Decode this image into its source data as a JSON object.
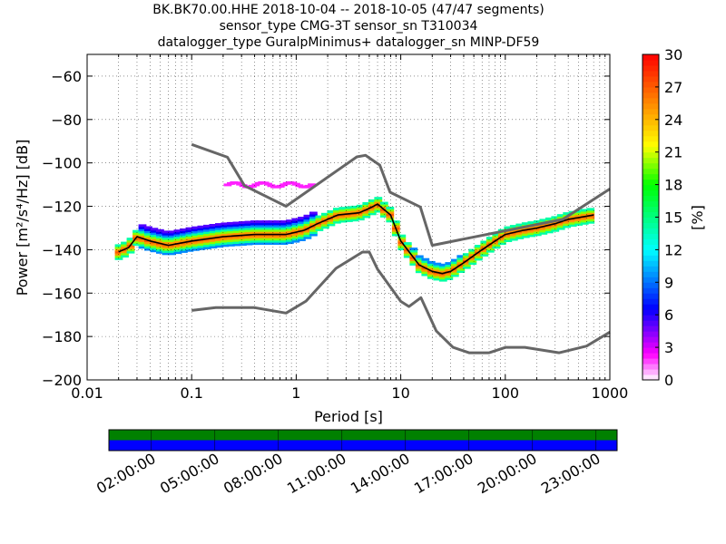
{
  "header": {
    "line1": "BK.BK70.00.HHE   2018-10-04 -- 2018-10-05  (47/47 segments)",
    "line2": "sensor_type CMG-3T sensor_sn T310034",
    "line3": "datalogger_type GuralpMinimus+ datalogger_sn MINP-DF59"
  },
  "chart_data": {
    "type": "heatmap",
    "title": "BK.BK70.00.HHE   2018-10-04 -- 2018-10-05  (47/47 segments)",
    "xlabel": "Period [s]",
    "ylabel": "Power [m²/s⁴/Hz] [dB]",
    "xscale": "log",
    "xlim": [
      0.01,
      1000
    ],
    "ylim": [
      -200,
      -50
    ],
    "x_ticks": [
      0.01,
      0.1,
      1,
      10,
      100,
      1000
    ],
    "x_tick_labels": [
      "0.01",
      "0.1",
      "1",
      "10",
      "100",
      "1000"
    ],
    "y_ticks": [
      -200,
      -180,
      -160,
      -140,
      -120,
      -100,
      -80,
      -60
    ],
    "y_tick_labels": [
      "−200",
      "−180",
      "−160",
      "−140",
      "−120",
      "−100",
      "−80",
      "−60"
    ],
    "grid": true,
    "colorbar": {
      "label": "[%]",
      "range": [
        0,
        30
      ],
      "ticks": [
        0,
        3,
        6,
        9,
        12,
        15,
        18,
        21,
        24,
        27,
        30
      ]
    },
    "series": [
      {
        "role": "mode",
        "color": "#000000",
        "points": [
          [
            0.02,
            -141
          ],
          [
            0.025,
            -139
          ],
          [
            0.03,
            -134
          ],
          [
            0.04,
            -136
          ],
          [
            0.06,
            -138
          ],
          [
            0.1,
            -136
          ],
          [
            0.2,
            -134
          ],
          [
            0.4,
            -133
          ],
          [
            0.8,
            -133
          ],
          [
            1.2,
            -131
          ],
          [
            1.6,
            -128
          ],
          [
            2.5,
            -124
          ],
          [
            4,
            -123
          ],
          [
            5,
            -121
          ],
          [
            6,
            -119
          ],
          [
            8,
            -124
          ],
          [
            10,
            -136
          ],
          [
            15,
            -147
          ],
          [
            20,
            -150
          ],
          [
            25,
            -151
          ],
          [
            30,
            -150
          ],
          [
            40,
            -146
          ],
          [
            60,
            -140
          ],
          [
            80,
            -136
          ],
          [
            100,
            -133
          ],
          [
            150,
            -131
          ],
          [
            200,
            -130
          ],
          [
            300,
            -128
          ],
          [
            400,
            -126
          ],
          [
            700,
            -124
          ]
        ]
      },
      {
        "role": "noise-model-high",
        "color": "#666666",
        "points": [
          [
            0.1,
            -91.5
          ],
          [
            0.22,
            -97.4
          ],
          [
            0.32,
            -110.5
          ],
          [
            0.8,
            -120
          ],
          [
            3.8,
            -97.2
          ],
          [
            4.6,
            -96.5
          ],
          [
            6.3,
            -101
          ],
          [
            7.9,
            -113.5
          ],
          [
            15.4,
            -120.3
          ],
          [
            20,
            -138
          ],
          [
            354.8,
            -126
          ],
          [
            1000,
            -112
          ]
        ]
      },
      {
        "role": "noise-model-low",
        "color": "#666666",
        "points": [
          [
            0.1,
            -168
          ],
          [
            0.17,
            -166.7
          ],
          [
            0.4,
            -166.7
          ],
          [
            0.8,
            -169.2
          ],
          [
            1.24,
            -163.7
          ],
          [
            2.4,
            -148.6
          ],
          [
            4.3,
            -141.1
          ],
          [
            5,
            -141.1
          ],
          [
            6,
            -149
          ],
          [
            10,
            -163.8
          ],
          [
            12,
            -166.2
          ],
          [
            15.6,
            -162.1
          ],
          [
            21.9,
            -177.5
          ],
          [
            31.6,
            -185
          ],
          [
            45,
            -187.5
          ],
          [
            70,
            -187.5
          ],
          [
            101,
            -185
          ],
          [
            154,
            -185
          ],
          [
            328,
            -187.5
          ],
          [
            600,
            -184.4
          ],
          [
            1000,
            -178
          ]
        ]
      }
    ],
    "time_axis": {
      "tick_labels": [
        "02:00:00",
        "05:00:00",
        "08:00:00",
        "11:00:00",
        "14:00:00",
        "17:00:00",
        "20:00:00",
        "23:00:00"
      ],
      "colors": {
        "coverage": "#008000",
        "data": "#0000ff"
      }
    }
  }
}
